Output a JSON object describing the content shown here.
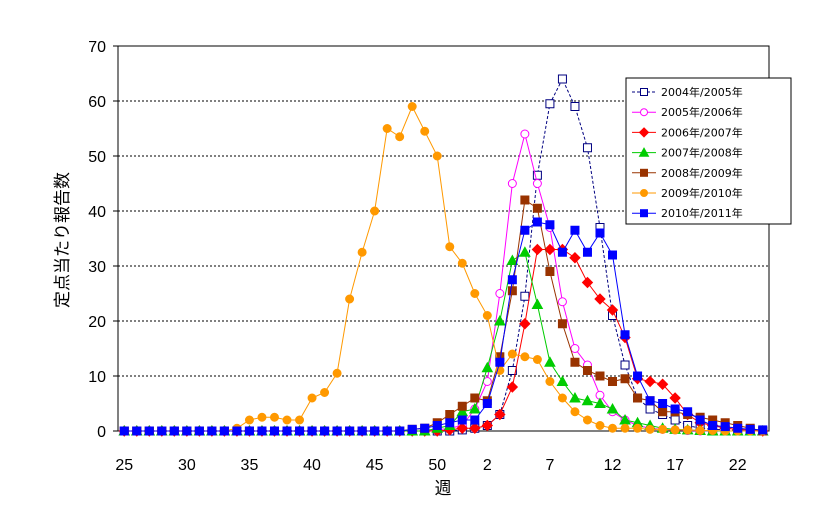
{
  "chart_data": {
    "type": "line",
    "xlabel": "週",
    "ylabel": "定点当たり報告数",
    "ylim": [
      0,
      70
    ],
    "y_ticks": [
      "0",
      "10",
      "20",
      "30",
      "40",
      "50",
      "60",
      "70"
    ],
    "week_order": [
      25,
      26,
      27,
      28,
      29,
      30,
      31,
      32,
      33,
      34,
      35,
      36,
      37,
      38,
      39,
      40,
      41,
      42,
      43,
      44,
      45,
      46,
      47,
      48,
      49,
      50,
      51,
      52,
      1,
      2,
      3,
      4,
      5,
      6,
      7,
      8,
      9,
      10,
      11,
      12,
      13,
      14,
      15,
      16,
      17,
      18,
      19,
      20,
      21,
      22,
      23,
      24
    ],
    "x_tick_labels": [
      "25",
      "30",
      "35",
      "40",
      "45",
      "50",
      "2",
      "7",
      "12",
      "17",
      "22"
    ],
    "grid": "horizontal dotted",
    "legend_position": "right",
    "series": [
      {
        "name": "2004年/2005年",
        "color": "#000080",
        "marker": "open-square",
        "line": "dashed",
        "values": [
          0,
          0,
          0,
          0,
          0,
          0,
          0,
          0,
          0,
          0,
          0,
          0,
          0,
          0,
          0,
          0,
          0,
          0,
          0,
          0,
          0,
          0,
          0,
          0,
          0,
          0,
          0,
          0.2,
          0.5,
          1.0,
          3.0,
          11.0,
          24.5,
          46.5,
          59.5,
          64.0,
          59.0,
          51.5,
          37.0,
          21.0,
          12.0,
          6.0,
          4.0,
          3.0,
          2.0,
          1.0,
          0.5,
          0.3,
          0.2,
          0.1,
          0,
          0
        ]
      },
      {
        "name": "2005年/2006年",
        "color": "#ff00ff",
        "marker": "open-circle",
        "line": "solid",
        "values": [
          0,
          0,
          0,
          0,
          0,
          0,
          0,
          0,
          0,
          0,
          0,
          0,
          0,
          0,
          0,
          0,
          0,
          0,
          0,
          0,
          0,
          0,
          0,
          0,
          0,
          0.2,
          0.5,
          1.0,
          4.0,
          9.0,
          25.0,
          45.0,
          54.0,
          45.0,
          37.0,
          23.5,
          15.0,
          12.0,
          6.5,
          3.5,
          2.0,
          1.0,
          0.5,
          0.3,
          0.2,
          0.1,
          0,
          0,
          0,
          0,
          0,
          0
        ]
      },
      {
        "name": "2006年/2007年",
        "color": "#ff0000",
        "marker": "filled-diamond",
        "line": "solid",
        "values": [
          0,
          0,
          0,
          0,
          0,
          0,
          0,
          0,
          0,
          0,
          0,
          0,
          0,
          0,
          0,
          0,
          0,
          0,
          0,
          0,
          0,
          0,
          0,
          0,
          0,
          0,
          0.2,
          0.5,
          0.5,
          1.0,
          3.0,
          8.0,
          19.5,
          33.0,
          33.0,
          33.0,
          31.5,
          27.0,
          24.0,
          22.0,
          17.0,
          9.5,
          9.0,
          8.5,
          6.0,
          3.0,
          1.5,
          1.0,
          0.5,
          0.3,
          0.2,
          0
        ]
      },
      {
        "name": "2007年/2008年",
        "color": "#00cc00",
        "marker": "filled-triangle",
        "line": "solid",
        "values": [
          0,
          0,
          0,
          0,
          0,
          0,
          0,
          0,
          0,
          0,
          0,
          0,
          0,
          0,
          0,
          0,
          0,
          0,
          0,
          0,
          0,
          0,
          0,
          0,
          0,
          0.5,
          1.0,
          3.5,
          4.0,
          11.5,
          20.0,
          31.0,
          32.5,
          23.0,
          12.5,
          9.0,
          6.0,
          5.5,
          5.0,
          4.0,
          2.0,
          1.5,
          1.0,
          0.5,
          0.3,
          0.2,
          0.1,
          0,
          0,
          0,
          0,
          0
        ]
      },
      {
        "name": "2008年/2009年",
        "color": "#993300",
        "marker": "filled-square",
        "line": "solid",
        "values": [
          0,
          0,
          0,
          0,
          0,
          0,
          0,
          0,
          0,
          0,
          0,
          0,
          0,
          0,
          0,
          0,
          0,
          0,
          0,
          0,
          0,
          0,
          0,
          0.3,
          0.5,
          1.5,
          3.0,
          4.5,
          6.0,
          5.5,
          13.5,
          25.5,
          42.0,
          40.5,
          29.0,
          19.5,
          12.5,
          11.0,
          10.0,
          9.0,
          9.5,
          6.0,
          5.5,
          3.5,
          3.5,
          3.0,
          2.5,
          2.0,
          1.5,
          1.0,
          0.5,
          0
        ]
      },
      {
        "name": "2009年/2010年",
        "color": "#ff9900",
        "marker": "filled-circle",
        "line": "solid",
        "values": [
          0,
          0,
          0,
          0,
          0,
          0,
          0,
          0,
          0,
          0.5,
          2.0,
          2.5,
          2.5,
          2.0,
          2.0,
          6.0,
          7.0,
          10.5,
          24.0,
          32.5,
          40.0,
          55.0,
          53.5,
          59.0,
          54.5,
          50.0,
          33.5,
          30.5,
          25.0,
          21.0,
          11.0,
          14.0,
          13.5,
          13.0,
          9.0,
          6.0,
          3.5,
          2.0,
          1.0,
          0.5,
          0.5,
          0.5,
          0.3,
          0.3,
          0.2,
          0.2,
          0.1,
          0.1,
          0,
          0,
          0,
          0
        ]
      },
      {
        "name": "2010年/2011年",
        "color": "#0000ff",
        "marker": "filled-square",
        "line": "solid",
        "values": [
          0,
          0,
          0,
          0,
          0,
          0,
          0,
          0,
          0,
          0,
          0,
          0,
          0,
          0,
          0,
          0,
          0,
          0,
          0,
          0,
          0,
          0,
          0,
          0.3,
          0.5,
          1.0,
          1.5,
          2.0,
          2.0,
          5.0,
          12.5,
          27.5,
          36.5,
          38.0,
          37.5,
          32.5,
          36.5,
          32.5,
          36.0,
          32.0,
          17.5,
          10.0,
          5.5,
          5.0,
          4.0,
          3.5,
          2.0,
          1.0,
          0.8,
          0.5,
          0.3,
          0.2
        ]
      }
    ]
  }
}
